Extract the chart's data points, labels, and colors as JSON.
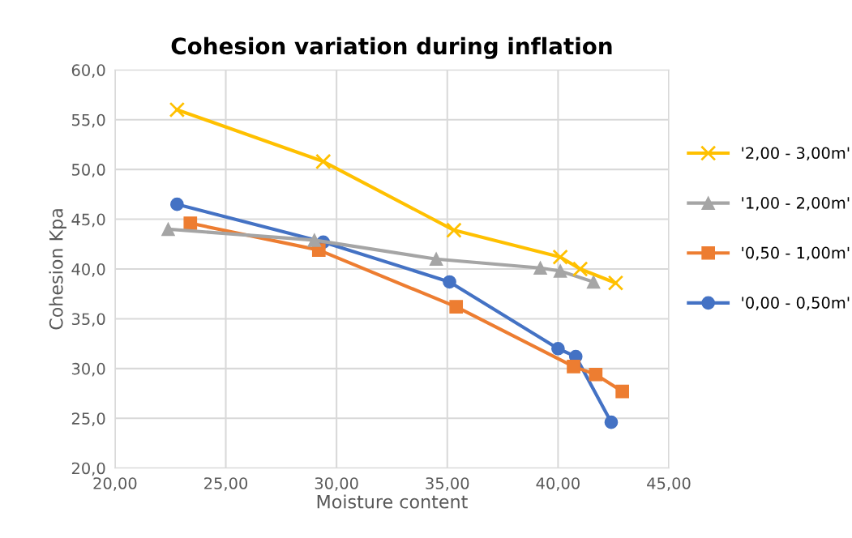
{
  "chart_data": {
    "type": "line",
    "title": "Cohesion variation during inflation",
    "xlabel": "Moisture content",
    "ylabel": "Cohesion Kpa",
    "xlim": [
      20,
      45
    ],
    "ylim": [
      20,
      60
    ],
    "xticks": [
      {
        "value": 20,
        "label": "20,00"
      },
      {
        "value": 25,
        "label": "25,00"
      },
      {
        "value": 30,
        "label": "30,00"
      },
      {
        "value": 35,
        "label": "35,00"
      },
      {
        "value": 40,
        "label": "40,00"
      },
      {
        "value": 45,
        "label": "45,00"
      }
    ],
    "yticks": [
      {
        "value": 20,
        "label": "20,0"
      },
      {
        "value": 25,
        "label": "25,0"
      },
      {
        "value": 30,
        "label": "30,0"
      },
      {
        "value": 35,
        "label": "35,0"
      },
      {
        "value": 40,
        "label": "40,0"
      },
      {
        "value": 45,
        "label": "45,0"
      },
      {
        "value": 50,
        "label": "50,0"
      },
      {
        "value": 55,
        "label": "55,0"
      },
      {
        "value": 60,
        "label": "60,0"
      }
    ],
    "grid": true,
    "legend": "right",
    "line_style": "solid",
    "series": [
      {
        "name": "'2,00 - 3,00m'",
        "color": "#ffc000",
        "marker": "cross",
        "x": [
          22.8,
          29.4,
          35.3,
          40.1,
          41.0,
          42.6
        ],
        "values": [
          56.0,
          50.8,
          43.9,
          41.2,
          40.0,
          38.6
        ]
      },
      {
        "name": "'1,00 - 2,00m'",
        "color": "#a5a5a5",
        "marker": "triangle",
        "x": [
          22.4,
          29.0,
          34.5,
          39.2,
          40.1,
          41.6
        ],
        "values": [
          44.0,
          42.9,
          41.0,
          40.1,
          39.8,
          38.7
        ]
      },
      {
        "name": "'0,50 - 1,00m'",
        "color": "#ed7d31",
        "marker": "square",
        "x": [
          23.4,
          29.2,
          35.4,
          40.7,
          41.7,
          42.9
        ],
        "values": [
          44.6,
          41.9,
          36.2,
          30.2,
          29.4,
          27.7
        ]
      },
      {
        "name": "'0,00 - 0,50m'",
        "color": "#4472c4",
        "marker": "circle",
        "x": [
          22.8,
          29.4,
          35.1,
          40.0,
          40.8,
          42.4
        ],
        "values": [
          46.5,
          42.7,
          38.7,
          32.0,
          31.2,
          24.6
        ]
      }
    ]
  }
}
